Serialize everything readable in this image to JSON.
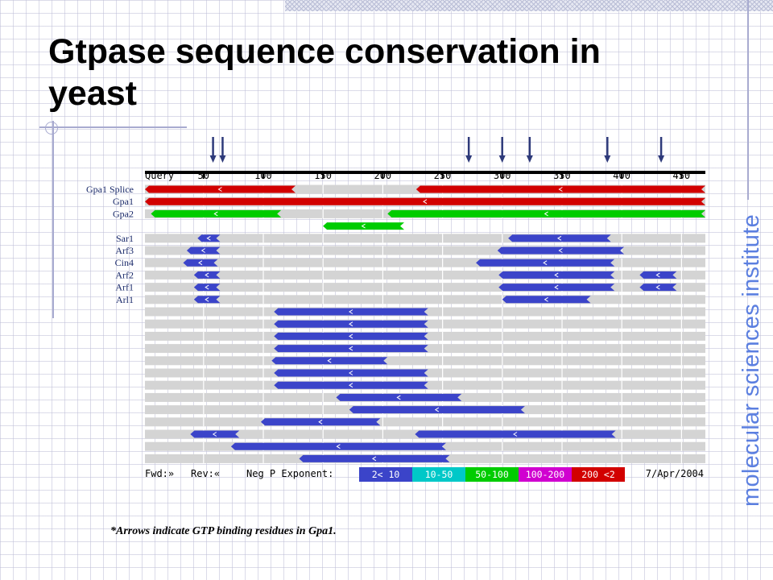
{
  "slide": {
    "title": "Gtpase sequence conservation in yeast",
    "vertical_text": "molecular sciences institute",
    "footnote": "*Arrows indicate GTP binding residues in Gpa1."
  },
  "colors": {
    "red": "#d20000",
    "green": "#00cc00",
    "blue": "#3b44c9",
    "track": "#d4d4d4",
    "arrow": "#2e3a7a",
    "accent": "#5b7fe0"
  },
  "figure": {
    "axis_label": "Query",
    "ticks": [
      50,
      100,
      150,
      200,
      250,
      300,
      350,
      400,
      450
    ],
    "axis_range": [
      1,
      470
    ],
    "gtp_binding_residues": [
      58,
      66,
      272,
      300,
      323,
      388,
      433
    ],
    "row_labels": [
      "Gpa1 Splice",
      "Gpa1",
      "Gpa2",
      "",
      "Sar1",
      "Arf3",
      "Cin4",
      "Arf2",
      "Arf1",
      "Arl1"
    ],
    "hits": [
      {
        "row": 0,
        "color": "red",
        "start": 1,
        "end": 127
      },
      {
        "row": 0,
        "color": "red",
        "start": 228,
        "end": 470
      },
      {
        "row": 1,
        "color": "red",
        "start": 1,
        "end": 470
      },
      {
        "row": 2,
        "color": "green",
        "start": 6,
        "end": 115
      },
      {
        "row": 2,
        "color": "green",
        "start": 204,
        "end": 470
      },
      {
        "row": 3,
        "color": "green",
        "start": 150,
        "end": 218
      },
      {
        "row": 4,
        "color": "blue",
        "start": 45,
        "end": 64
      },
      {
        "row": 4,
        "color": "blue",
        "start": 305,
        "end": 391
      },
      {
        "row": 5,
        "color": "blue",
        "start": 36,
        "end": 64
      },
      {
        "row": 5,
        "color": "blue",
        "start": 296,
        "end": 402
      },
      {
        "row": 6,
        "color": "blue",
        "start": 33,
        "end": 62
      },
      {
        "row": 6,
        "color": "blue",
        "start": 278,
        "end": 394
      },
      {
        "row": 7,
        "color": "blue",
        "start": 42,
        "end": 64
      },
      {
        "row": 7,
        "color": "blue",
        "start": 297,
        "end": 394
      },
      {
        "row": 7,
        "color": "blue",
        "start": 415,
        "end": 446
      },
      {
        "row": 8,
        "color": "blue",
        "start": 42,
        "end": 64
      },
      {
        "row": 8,
        "color": "blue",
        "start": 297,
        "end": 394
      },
      {
        "row": 8,
        "color": "blue",
        "start": 415,
        "end": 446
      },
      {
        "row": 9,
        "color": "blue",
        "start": 42,
        "end": 64
      },
      {
        "row": 9,
        "color": "blue",
        "start": 300,
        "end": 374
      },
      {
        "row": 10,
        "color": "blue",
        "start": 109,
        "end": 238
      },
      {
        "row": 11,
        "color": "blue",
        "start": 109,
        "end": 238
      },
      {
        "row": 12,
        "color": "blue",
        "start": 109,
        "end": 238
      },
      {
        "row": 13,
        "color": "blue",
        "start": 109,
        "end": 238
      },
      {
        "row": 14,
        "color": "blue",
        "start": 107,
        "end": 204
      },
      {
        "row": 15,
        "color": "blue",
        "start": 109,
        "end": 238
      },
      {
        "row": 16,
        "color": "blue",
        "start": 109,
        "end": 238
      },
      {
        "row": 17,
        "color": "blue",
        "start": 161,
        "end": 266
      },
      {
        "row": 18,
        "color": "blue",
        "start": 172,
        "end": 319
      },
      {
        "row": 19,
        "color": "blue",
        "start": 98,
        "end": 198
      },
      {
        "row": 20,
        "color": "blue",
        "start": 39,
        "end": 80
      },
      {
        "row": 20,
        "color": "blue",
        "start": 227,
        "end": 395
      },
      {
        "row": 21,
        "color": "blue",
        "start": 73,
        "end": 253
      },
      {
        "row": 22,
        "color": "blue",
        "start": 130,
        "end": 256
      }
    ],
    "legend": {
      "fwd_label": "Fwd:»",
      "rev_label": "Rev:«",
      "exponent_label": "Neg P Exponent:",
      "bins": [
        {
          "label": "2< 10",
          "color": "#3b44c9"
        },
        {
          "label": "10-50",
          "color": "#00c8c8"
        },
        {
          "label": "50-100",
          "color": "#00cc00"
        },
        {
          "label": "100-200",
          "color": "#d000d0"
        },
        {
          "label": "200 <2",
          "color": "#d20000"
        }
      ],
      "date": "7/Apr/2004"
    }
  }
}
